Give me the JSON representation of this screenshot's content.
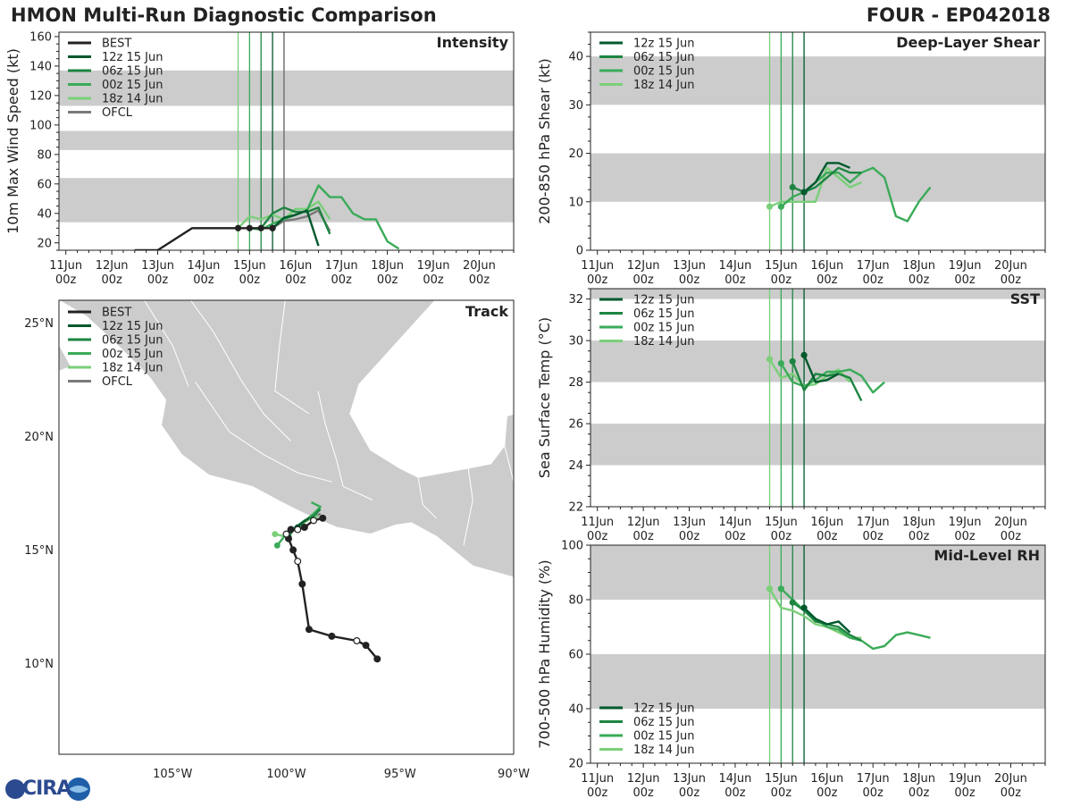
{
  "header": {
    "title": "HMON Multi-Run Diagnostic Comparison",
    "storm": "FOUR - EP042018"
  },
  "logo": {
    "text": "CIRA"
  },
  "colors": {
    "best": "#222222",
    "run_12z": "#00592d",
    "run_06z": "#1d8541",
    "run_00z": "#3aab58",
    "run_18z": "#7bcf79",
    "ofcl": "#7a7a7a",
    "band": "#cccccc",
    "land": "#cccccc"
  },
  "time_axis": {
    "ticks": [
      0,
      1,
      2,
      3,
      4,
      5,
      6,
      7,
      8,
      9
    ],
    "labels": [
      [
        "11Jun",
        "00z"
      ],
      [
        "12Jun",
        "00z"
      ],
      [
        "13Jun",
        "00z"
      ],
      [
        "14Jun",
        "00z"
      ],
      [
        "15Jun",
        "00z"
      ],
      [
        "16Jun",
        "00z"
      ],
      [
        "17Jun",
        "00z"
      ],
      [
        "18Jun",
        "00z"
      ],
      [
        "19Jun",
        "00z"
      ],
      [
        "20Jun",
        "00z"
      ]
    ],
    "range": [
      -0.15,
      9.75
    ],
    "init_lines": [
      {
        "run": "18z 14 Jun",
        "t": 3.75
      },
      {
        "run": "00z 15 Jun",
        "t": 4.0
      },
      {
        "run": "06z 15 Jun",
        "t": 4.25
      },
      {
        "run": "12z 15 Jun",
        "t": 4.5
      }
    ]
  },
  "chart_data": [
    {
      "id": "intensity",
      "type": "line",
      "title": "Intensity",
      "ylabel": "10m Max Wind Speed (kt)",
      "ylim": [
        15,
        163
      ],
      "yticks": [
        20,
        40,
        60,
        80,
        100,
        120,
        140,
        160
      ],
      "bands": [
        [
          34,
          64
        ],
        [
          83,
          96
        ],
        [
          113,
          137
        ]
      ],
      "legend": [
        "BEST",
        "12z 15 Jun",
        "06z 15 Jun",
        "00z 15 Jun",
        "18z 14 Jun",
        "OFCL"
      ],
      "ofcl_line_t": 4.75,
      "series": [
        {
          "name": "BEST",
          "color": "best",
          "t": [
            1.5,
            2.0,
            2.75,
            3.0,
            3.25,
            3.5,
            3.75,
            4.0,
            4.25,
            4.5
          ],
          "y": [
            15,
            15,
            30,
            30,
            30,
            30,
            30,
            30,
            30,
            30
          ],
          "markers": "last"
        },
        {
          "name": "12z 15 Jun",
          "color": "run_12z",
          "t": [
            4.5,
            4.75,
            5.0,
            5.25,
            5.5
          ],
          "y": [
            30,
            37,
            39,
            42,
            18
          ]
        },
        {
          "name": "06z 15 Jun",
          "color": "run_06z",
          "t": [
            4.25,
            4.5,
            4.75,
            5.0,
            5.25,
            5.5,
            5.75
          ],
          "y": [
            30,
            40,
            44,
            41,
            41,
            44,
            26
          ]
        },
        {
          "name": "00z 15 Jun",
          "color": "run_00z",
          "t": [
            4.0,
            4.25,
            4.5,
            4.75,
            5.0,
            5.25,
            5.5,
            5.75,
            6.0,
            6.25,
            6.5,
            6.75,
            7.0,
            7.25
          ],
          "y": [
            30,
            29,
            33,
            36,
            39,
            42,
            59,
            51,
            51,
            40,
            36,
            36,
            21,
            16
          ]
        },
        {
          "name": "18z 14 Jun",
          "color": "run_18z",
          "t": [
            3.75,
            4.0,
            4.25,
            4.5,
            4.75,
            5.0,
            5.25,
            5.5,
            5.75
          ],
          "y": [
            30,
            38,
            36,
            39,
            36,
            43,
            43,
            48,
            36
          ]
        },
        {
          "name": "OFCL",
          "color": "ofcl",
          "t": [
            4.5,
            4.75,
            5.0,
            5.25,
            5.5,
            5.75
          ],
          "y": [
            30,
            35,
            36,
            38,
            42,
            28
          ]
        }
      ]
    },
    {
      "id": "shear",
      "type": "line",
      "title": "Deep-Layer Shear",
      "ylabel": "200-850 hPa Shear (kt)",
      "ylim": [
        0,
        45
      ],
      "yticks": [
        0,
        10,
        20,
        30,
        40
      ],
      "bands": [
        [
          10,
          20
        ],
        [
          30,
          40
        ]
      ],
      "legend": [
        "12z 15 Jun",
        "06z 15 Jun",
        "00z 15 Jun",
        "18z 14 Jun"
      ],
      "series": [
        {
          "name": "12z 15 Jun",
          "color": "run_12z",
          "t": [
            4.5,
            4.75,
            5.0,
            5.25,
            5.5
          ],
          "y": [
            12,
            14,
            18,
            18,
            17
          ],
          "markers": "first"
        },
        {
          "name": "06z 15 Jun",
          "color": "run_06z",
          "t": [
            4.25,
            4.5,
            4.75,
            5.0,
            5.25,
            5.5,
            5.75
          ],
          "y": [
            13,
            12,
            13,
            15,
            17,
            16,
            16
          ],
          "markers": "first"
        },
        {
          "name": "00z 15 Jun",
          "color": "run_00z",
          "t": [
            4.0,
            4.25,
            4.5,
            4.75,
            5.0,
            5.25,
            5.5,
            5.75,
            6.0,
            6.25,
            6.5,
            6.75,
            7.0,
            7.25
          ],
          "y": [
            9,
            11,
            12,
            14,
            16,
            16,
            14,
            16,
            17,
            15,
            7,
            6,
            10,
            13
          ],
          "markers": "first"
        },
        {
          "name": "18z 14 Jun",
          "color": "run_18z",
          "t": [
            3.75,
            4.0,
            4.25,
            4.5,
            4.75,
            5.0,
            5.25,
            5.5,
            5.75
          ],
          "y": [
            9,
            10,
            10,
            10,
            10,
            17,
            15,
            13,
            14
          ],
          "markers": "first"
        }
      ]
    },
    {
      "id": "sst",
      "type": "line",
      "title": "SST",
      "ylabel": "Sea Surface Temp (°C)",
      "ylim": [
        22,
        32.5
      ],
      "yticks": [
        22,
        24,
        26,
        28,
        30,
        32
      ],
      "bands": [
        [
          24,
          26
        ],
        [
          28,
          30
        ],
        [
          32,
          32.5
        ]
      ],
      "legend": [
        "12z 15 Jun",
        "06z 15 Jun",
        "00z 15 Jun",
        "18z 14 Jun"
      ],
      "series": [
        {
          "name": "12z 15 Jun",
          "color": "run_12z",
          "t": [
            4.5,
            4.75,
            5.0,
            5.25
          ],
          "y": [
            29.3,
            28.0,
            28.1,
            28.4
          ],
          "markers": "first"
        },
        {
          "name": "06z 15 Jun",
          "color": "run_06z",
          "t": [
            4.25,
            4.5,
            4.75,
            5.0,
            5.25,
            5.5,
            5.75
          ],
          "y": [
            29.0,
            27.6,
            28.4,
            28.3,
            28.4,
            28.2,
            27.1
          ],
          "markers": "first"
        },
        {
          "name": "00z 15 Jun",
          "color": "run_00z",
          "t": [
            4.0,
            4.25,
            4.5,
            4.75,
            5.0,
            5.25,
            5.5,
            5.75,
            6.0,
            6.25
          ],
          "y": [
            28.9,
            28.0,
            27.8,
            28.1,
            28.5,
            28.5,
            28.6,
            28.3,
            27.5,
            28.0
          ],
          "markers": "first"
        },
        {
          "name": "18z 14 Jun",
          "color": "run_18z",
          "t": [
            3.75,
            4.0,
            4.25,
            4.5,
            4.75,
            5.0,
            5.25,
            5.5
          ],
          "y": [
            29.1,
            28.2,
            28.4,
            27.8,
            27.9,
            28.3,
            28.6,
            28.0
          ],
          "markers": "first"
        }
      ]
    },
    {
      "id": "rh",
      "type": "line",
      "title": "Mid-Level RH",
      "ylabel": "700-500 hPa Humidity (%)",
      "ylim": [
        20,
        100
      ],
      "yticks": [
        20,
        40,
        60,
        80,
        100
      ],
      "bands": [
        [
          40,
          60
        ],
        [
          80,
          100
        ]
      ],
      "legend": [
        "12z 15 Jun",
        "06z 15 Jun",
        "00z 15 Jun",
        "18z 14 Jun"
      ],
      "series": [
        {
          "name": "12z 15 Jun",
          "color": "run_12z",
          "t": [
            4.5,
            4.75,
            5.0,
            5.25,
            5.5
          ],
          "y": [
            77,
            73,
            71,
            72,
            68
          ],
          "markers": "first"
        },
        {
          "name": "06z 15 Jun",
          "color": "run_06z",
          "t": [
            4.25,
            4.5,
            4.75,
            5.0,
            5.25,
            5.5,
            5.75
          ],
          "y": [
            79,
            76,
            72,
            71,
            70,
            67,
            65
          ],
          "markers": "first"
        },
        {
          "name": "00z 15 Jun",
          "color": "run_00z",
          "t": [
            4.0,
            4.25,
            4.5,
            4.75,
            5.0,
            5.25,
            5.5,
            5.75,
            6.0,
            6.25,
            6.5,
            6.75,
            7.0,
            7.25
          ],
          "y": [
            84,
            80,
            76,
            73,
            70,
            69,
            66,
            65,
            62,
            63,
            67,
            68,
            67,
            66
          ],
          "markers": "first"
        },
        {
          "name": "18z 14 Jun",
          "color": "run_18z",
          "t": [
            3.75,
            4.0,
            4.25,
            4.5,
            4.75,
            5.0,
            5.25,
            5.5,
            5.75
          ],
          "y": [
            84,
            77,
            76,
            74,
            71,
            70,
            68,
            66,
            66
          ],
          "markers": "first"
        }
      ]
    },
    {
      "id": "track",
      "type": "scatter",
      "title": "Track",
      "xlim": [
        -110,
        -90
      ],
      "ylim": [
        6,
        26
      ],
      "xticks": [
        -105,
        -100,
        -95,
        -90
      ],
      "xticklabels": [
        "105°W",
        "100°W",
        "95°W",
        "90°W"
      ],
      "yticks": [
        10,
        15,
        20,
        25
      ],
      "yticklabels": [
        "10°N",
        "15°N",
        "20°N",
        "25°N"
      ],
      "legend": [
        "BEST",
        "12z 15 Jun",
        "06z 15 Jun",
        "00z 15 Jun",
        "18z 14 Jun",
        "OFCL"
      ],
      "series": [
        {
          "name": "BEST",
          "color": "best",
          "lon": [
            -96.0,
            -96.5,
            -96.9,
            -98.0,
            -99.0,
            -99.3,
            -99.5,
            -99.7,
            -99.9,
            -100.0,
            -99.8,
            -99.5,
            -99.2,
            -98.8,
            -98.4
          ],
          "lat": [
            10.2,
            10.8,
            11.0,
            11.2,
            11.5,
            13.5,
            14.5,
            15.0,
            15.5,
            15.7,
            15.9,
            15.9,
            16.0,
            16.3,
            16.4
          ],
          "open": [
            false,
            false,
            true,
            false,
            false,
            false,
            true,
            false,
            false,
            true,
            false,
            true,
            false,
            true,
            false
          ]
        },
        {
          "name": "12z 15 Jun",
          "color": "run_12z",
          "lon": [
            -99.5,
            -99.3,
            -99.0
          ],
          "lat": [
            16.0,
            16.2,
            16.4
          ]
        },
        {
          "name": "06z 15 Jun",
          "color": "run_06z",
          "lon": [
            -99.9,
            -99.6,
            -99.2,
            -98.8,
            -98.5
          ],
          "lat": [
            15.6,
            16.0,
            16.3,
            16.5,
            16.8
          ]
        },
        {
          "name": "00z 15 Jun",
          "color": "run_00z",
          "lon": [
            -100.4,
            -100.0,
            -99.4,
            -98.8,
            -98.5,
            -98.9
          ],
          "lat": [
            15.2,
            15.7,
            16.1,
            16.6,
            16.9,
            17.1
          ]
        },
        {
          "name": "18z 14 Jun",
          "color": "run_18z",
          "lon": [
            -100.5,
            -100.1,
            -99.6,
            -99.1,
            -98.6
          ],
          "lat": [
            15.7,
            15.6,
            15.9,
            16.3,
            16.5
          ]
        },
        {
          "name": "OFCL",
          "color": "ofcl",
          "lon": [
            -99.8,
            -99.4,
            -98.9,
            -98.5
          ],
          "lat": [
            15.9,
            16.1,
            16.4,
            16.6
          ]
        }
      ]
    }
  ]
}
